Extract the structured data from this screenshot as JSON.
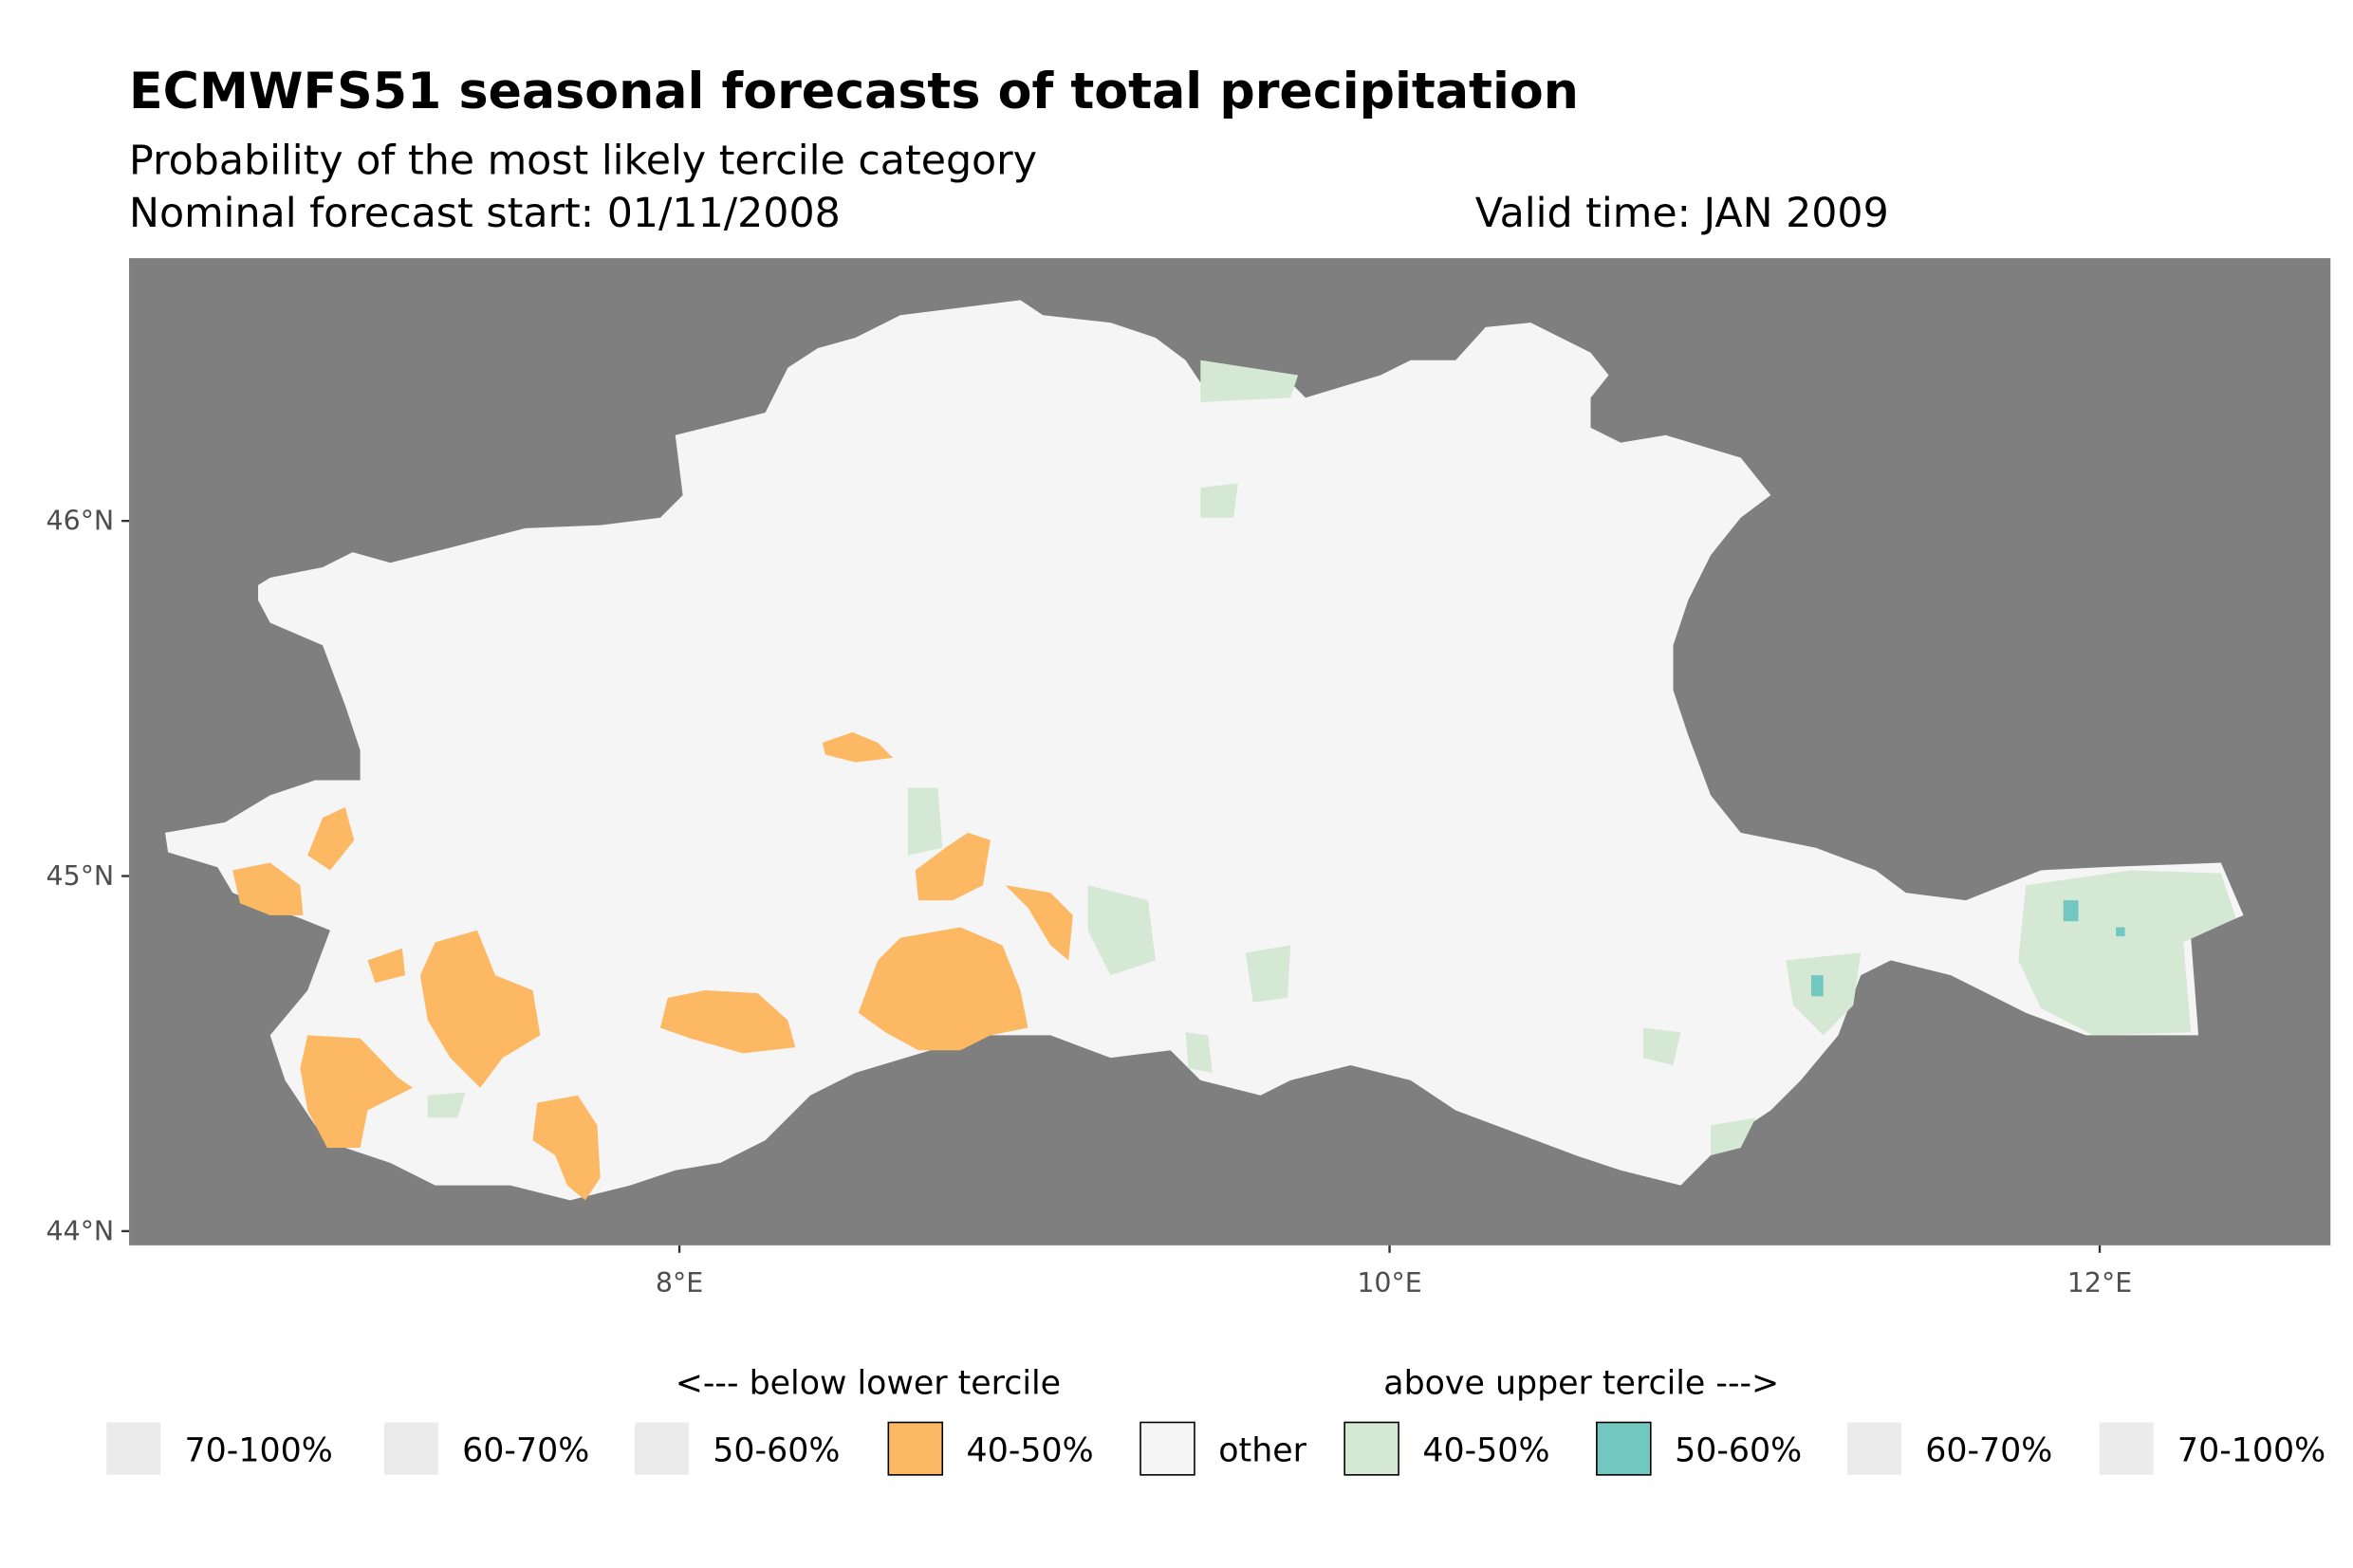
{
  "chart_data": {
    "type": "heatmap",
    "title": "ECMWFS51 seasonal forecasts of total precipitation",
    "subtitle": "Probability of the most likely tercile category",
    "start_label": "Nominal forecast start: 01/11/2008",
    "valid_label": "Valid time: JAN 2009",
    "x_ticks": [
      {
        "value": 8,
        "label": "8°E"
      },
      {
        "value": 10,
        "label": "10°E"
      },
      {
        "value": 12,
        "label": "12°E"
      }
    ],
    "y_ticks": [
      {
        "value": 46,
        "label": "46°N"
      },
      {
        "value": 45,
        "label": "45°N"
      },
      {
        "value": 44,
        "label": "44°N"
      }
    ],
    "xlim": [
      6.45,
      12.65
    ],
    "ylim": [
      43.96,
      46.74
    ],
    "background_color": "#7f7f7f",
    "legend": {
      "placement": "bottom",
      "below_header": "<--- below lower tercile",
      "above_header": "above upper tercile --->",
      "items": [
        {
          "label": "70-100%",
          "color": "#ebebeb",
          "outlined": false
        },
        {
          "label": "60-70%",
          "color": "#ebebeb",
          "outlined": false
        },
        {
          "label": "50-60%",
          "color": "#ebebeb",
          "outlined": false
        },
        {
          "label": "40-50%",
          "color": "#fdb863",
          "outlined": true
        },
        {
          "label": "other",
          "color": "#f5f5f5",
          "outlined": true
        },
        {
          "label": "40-50%",
          "color": "#d5e8d4",
          "outlined": true
        },
        {
          "label": "50-60%",
          "color": "#72c7c0",
          "outlined": true
        },
        {
          "label": "60-70%",
          "color": "#ebebeb",
          "outlined": false
        },
        {
          "label": "70-100%",
          "color": "#ebebeb",
          "outlined": false
        }
      ]
    }
  }
}
